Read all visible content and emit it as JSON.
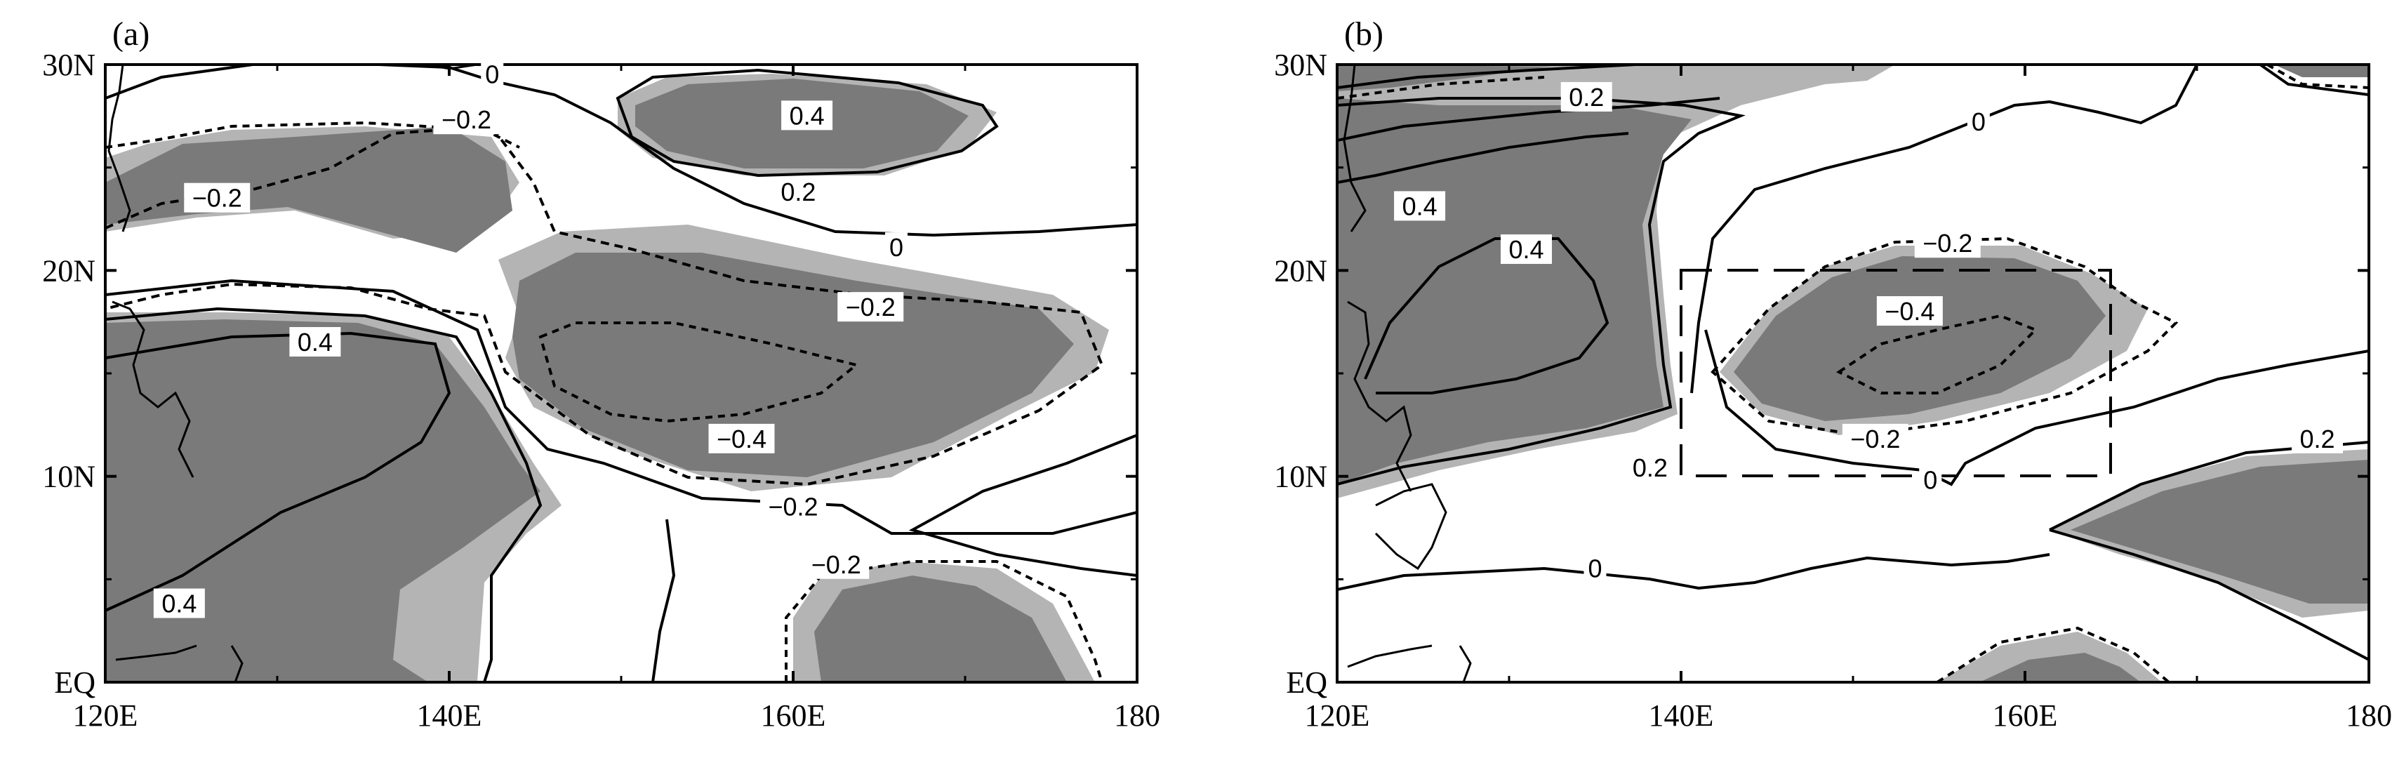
{
  "colors": {
    "dark_shade": "#7a7a7a",
    "light_shade": "#b4b4b4",
    "line": "#000000",
    "frame": "#000000"
  },
  "chart_data": [
    {
      "type": "contour",
      "panel_label": "(a)",
      "xlim": [
        120,
        180
      ],
      "ylim": [
        0,
        30
      ],
      "x_ticks": [
        120,
        140,
        160,
        180
      ],
      "x_tick_labels": [
        "120E",
        "140E",
        "160E",
        "180"
      ],
      "y_ticks": [
        0,
        10,
        20,
        30
      ],
      "y_tick_labels": [
        "EQ",
        "10N",
        "20N",
        "30N"
      ],
      "shading": "dark fill = significant at higher level, light fill = significant at lower level",
      "contour_labels": [
        {
          "text": "0",
          "lon": 142.5,
          "lat": 29.5
        },
        {
          "text": "−0.2",
          "lon": 141.0,
          "lat": 27.3
        },
        {
          "text": "0.4",
          "lon": 160.8,
          "lat": 27.5
        },
        {
          "text": "0.2",
          "lon": 160.3,
          "lat": 23.8
        },
        {
          "text": "−0.2",
          "lon": 126.5,
          "lat": 23.5
        },
        {
          "text": "0",
          "lon": 166.0,
          "lat": 21.1
        },
        {
          "text": "−0.2",
          "lon": 164.5,
          "lat": 18.2
        },
        {
          "text": "0.4",
          "lon": 132.2,
          "lat": 16.5
        },
        {
          "text": "−0.4",
          "lon": 157.0,
          "lat": 11.8
        },
        {
          "text": "−0.2",
          "lon": 160.0,
          "lat": 8.5
        },
        {
          "text": "−0.2",
          "lon": 162.5,
          "lat": 5.7
        },
        {
          "text": "0.4",
          "lon": 124.3,
          "lat": 3.8
        }
      ]
    },
    {
      "type": "contour",
      "panel_label": "(b)",
      "xlim": [
        120,
        180
      ],
      "ylim": [
        0,
        30
      ],
      "x_ticks": [
        120,
        140,
        160,
        180
      ],
      "x_tick_labels": [
        "120E",
        "140E",
        "160E",
        "180"
      ],
      "y_ticks": [
        0,
        10,
        20,
        30
      ],
      "y_tick_labels": [
        "EQ",
        "10N",
        "20N",
        "30N"
      ],
      "box": {
        "lon": [
          140,
          165
        ],
        "lat": [
          10,
          20
        ]
      },
      "contour_labels": [
        {
          "text": "0.2",
          "lon": 134.5,
          "lat": 28.4
        },
        {
          "text": "0",
          "lon": 157.3,
          "lat": 27.2
        },
        {
          "text": "0.4",
          "lon": 124.8,
          "lat": 23.1
        },
        {
          "text": "0.4",
          "lon": 131.0,
          "lat": 21.0
        },
        {
          "text": "−0.2",
          "lon": 155.5,
          "lat": 21.3
        },
        {
          "text": "−0.4",
          "lon": 153.3,
          "lat": 18.0
        },
        {
          "text": "−0.2",
          "lon": 151.3,
          "lat": 11.8
        },
        {
          "text": "0.2",
          "lon": 138.2,
          "lat": 10.4
        },
        {
          "text": "0",
          "lon": 154.5,
          "lat": 9.8
        },
        {
          "text": "0.2",
          "lon": 177.0,
          "lat": 11.8
        },
        {
          "text": "0",
          "lon": 135.0,
          "lat": 5.5
        }
      ]
    }
  ]
}
